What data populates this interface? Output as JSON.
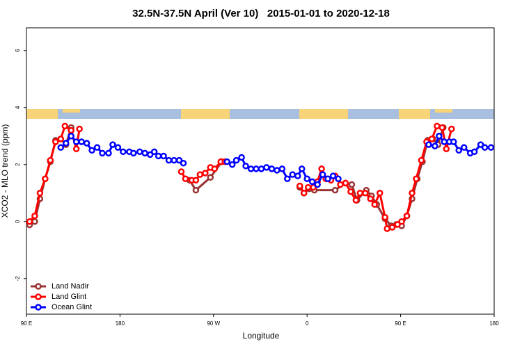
{
  "chart_data": {
    "type": "line",
    "title": "32.5N-37.5N April (Ver 10)   2015-01-01 to 2020-12-18",
    "x_label": "Longitude",
    "y_label": "XCO2 - MLO trend (ppm)",
    "xlim": [
      90,
      540
    ],
    "ylim": [
      -3.25,
      6.8
    ],
    "xticks": [
      {
        "value": 90,
        "label": "90 E"
      },
      180,
      {
        "value": 270,
        "label": "90 W"
      },
      {
        "value": 360,
        "label": "0"
      },
      {
        "value": 450,
        "label": "90 E"
      },
      {
        "value": 540,
        "label": "180"
      }
    ],
    "yticks": [
      -2,
      0,
      2,
      4,
      6
    ],
    "legend": "bottom-left",
    "series": [
      {
        "name": "Land Nadir",
        "color": "#993333",
        "x": [
          93,
          98,
          103,
          108,
          113,
          118,
          123,
          128,
          133,
          null,
          247,
          253,
          267,
          278,
          null,
          353,
          357,
          362,
          367,
          387,
          397,
          403,
          408,
          417,
          422,
          427,
          435,
          441,
          446,
          451,
          456,
          461,
          466,
          471,
          476,
          481,
          486,
          491
        ],
        "values": [
          -0.12,
          0.0,
          0.8,
          1.5,
          2.1,
          2.85,
          2.9,
          2.7,
          3.3,
          null,
          1.45,
          1.1,
          1.55,
          2.1,
          null,
          1.2,
          1.0,
          1.15,
          1.1,
          1.1,
          1.35,
          1.3,
          0.75,
          1.1,
          0.9,
          0.6,
          0.1,
          -0.15,
          -0.1,
          -0.15,
          0.2,
          0.8,
          1.5,
          2.1,
          2.85,
          2.9,
          2.7,
          3.3
        ]
      },
      {
        "name": "Land Glint",
        "color": "#ff0000",
        "x": [
          93,
          98,
          103,
          108,
          113,
          118,
          123,
          127,
          133,
          138,
          141,
          null,
          239,
          243,
          249,
          253,
          257,
          262,
          267,
          271,
          277,
          281,
          null,
          353,
          357,
          361,
          366,
          370,
          374,
          378,
          383,
          387,
          392,
          397,
          402,
          407,
          411,
          416,
          421,
          425,
          430,
          435,
          437,
          442,
          447,
          451,
          456,
          461,
          465,
          470,
          475,
          480,
          485,
          490,
          494,
          499
        ],
        "values": [
          0.0,
          0.2,
          1.0,
          1.5,
          2.15,
          2.8,
          2.9,
          3.35,
          3.2,
          2.55,
          3.25,
          null,
          1.75,
          1.5,
          1.45,
          1.45,
          1.65,
          1.7,
          1.9,
          1.85,
          2.1,
          2.1,
          null,
          1.25,
          1.0,
          1.2,
          1.2,
          1.4,
          1.85,
          1.5,
          1.45,
          1.6,
          1.3,
          1.35,
          1.05,
          0.75,
          1.0,
          1.0,
          0.8,
          0.6,
          1.0,
          0.15,
          -0.25,
          -0.2,
          -0.1,
          0.0,
          0.2,
          1.0,
          1.5,
          2.15,
          2.8,
          2.9,
          3.35,
          3.3,
          2.55,
          3.25
        ]
      },
      {
        "name": "Ocean Glint",
        "color": "#0000ff",
        "x": [
          123,
          128,
          133,
          138,
          143,
          148,
          153,
          158,
          163,
          169,
          173,
          178,
          183,
          189,
          193,
          199,
          204,
          209,
          213,
          217,
          222,
          227,
          232,
          237,
          241,
          null,
          283,
          288,
          292,
          297,
          301,
          306,
          311,
          316,
          321,
          326,
          331,
          336,
          341,
          346,
          351,
          355,
          360,
          365,
          370,
          375,
          380,
          385,
          390,
          null,
          477,
          483,
          487,
          492,
          497,
          501,
          506,
          511,
          517,
          521,
          527,
          531,
          537
        ],
        "values": [
          2.6,
          2.75,
          3.0,
          2.8,
          2.8,
          2.75,
          2.5,
          2.6,
          2.4,
          2.4,
          2.7,
          2.6,
          2.45,
          2.45,
          2.4,
          2.45,
          2.4,
          2.35,
          2.45,
          2.3,
          2.3,
          2.15,
          2.15,
          2.15,
          2.05,
          null,
          2.1,
          2.0,
          2.15,
          2.25,
          1.95,
          1.85,
          1.85,
          1.85,
          1.9,
          1.85,
          1.8,
          1.85,
          1.5,
          1.65,
          1.6,
          1.85,
          1.5,
          1.4,
          1.3,
          1.65,
          1.5,
          1.6,
          1.5,
          null,
          2.7,
          2.65,
          3.0,
          2.8,
          2.8,
          2.8,
          2.5,
          2.6,
          2.4,
          2.45,
          2.7,
          2.6,
          2.6
        ]
      }
    ]
  }
}
